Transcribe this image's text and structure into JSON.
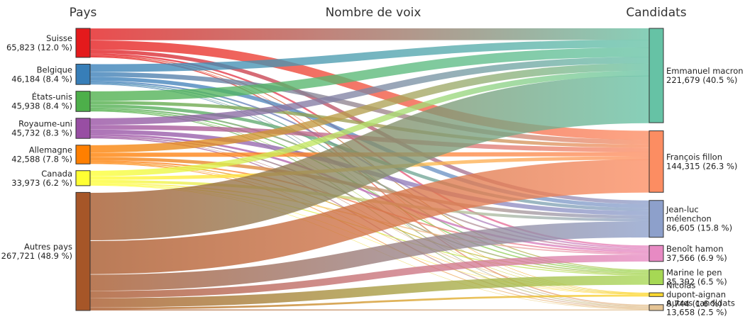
{
  "headers": {
    "left": "Pays",
    "middle": "Nombre de voix",
    "right": "Candidats"
  },
  "countries": [
    {
      "name": "Suisse",
      "value": "65,823 (12.0 %)",
      "count": 65823,
      "color": "#e41a1c"
    },
    {
      "name": "Belgique",
      "value": "46,184 (8.4 %)",
      "count": 46184,
      "color": "#377eb8"
    },
    {
      "name": "États-unis",
      "value": "45,938 (8.4 %)",
      "count": 45938,
      "color": "#4daf4a"
    },
    {
      "name": "Royaume-uni",
      "value": "45,732 (8.3 %)",
      "count": 45732,
      "color": "#984ea3"
    },
    {
      "name": "Allemagne",
      "value": "42,588 (7.8 %)",
      "count": 42588,
      "color": "#ff7f00"
    },
    {
      "name": "Canada",
      "value": "33,973 (6.2 %)",
      "count": 33973,
      "color": "#ffff33"
    },
    {
      "name": "Autres pays",
      "value": "267,721 (48.9 %)",
      "count": 267721,
      "color": "#a65628"
    }
  ],
  "candidates": [
    {
      "name": "Emmanuel macron",
      "value": "221,679 (40.5 %)",
      "count": 221679,
      "color": "#66c2a5"
    },
    {
      "name": "François fillon",
      "value": "144,315 (26.3 %)",
      "count": 144315,
      "color": "#fc8d62"
    },
    {
      "name": "Jean-luc mélenchon",
      "value": "86,605 (15.8 %)",
      "count": 86605,
      "color": "#8da0cb"
    },
    {
      "name": "Benoît hamon",
      "value": "37,566 (6.9 %)",
      "count": 37566,
      "color": "#e78ac3"
    },
    {
      "name": "Marine le pen",
      "value": "35,392 (6.5 %)",
      "count": 35392,
      "color": "#a6d854"
    },
    {
      "name": "Nicolas dupont-aignan",
      "value": "8,744 (1.6 %)",
      "count": 8744,
      "color": "#ffd92f"
    },
    {
      "name": "Autres candidats",
      "value": "13,658 (2.5 %)",
      "count": 13658,
      "color": "#e5c494"
    }
  ],
  "flows": [
    [
      27200,
      21000,
      8500,
      4000,
      2000,
      500,
      2623
    ],
    [
      18000,
      10700,
      9000,
      3500,
      2500,
      1000,
      1484
    ],
    [
      22000,
      7700,
      7500,
      3500,
      2500,
      700,
      2038
    ],
    [
      15000,
      10500,
      10000,
      4500,
      2800,
      700,
      2232
    ],
    [
      17000,
      9800,
      7800,
      3200,
      2200,
      800,
      1788
    ],
    [
      13000,
      8000,
      6500,
      2800,
      2000,
      600,
      1073
    ],
    [
      109479,
      76615,
      37305,
      16066,
      21392,
      4444,
      2420
    ]
  ]
}
